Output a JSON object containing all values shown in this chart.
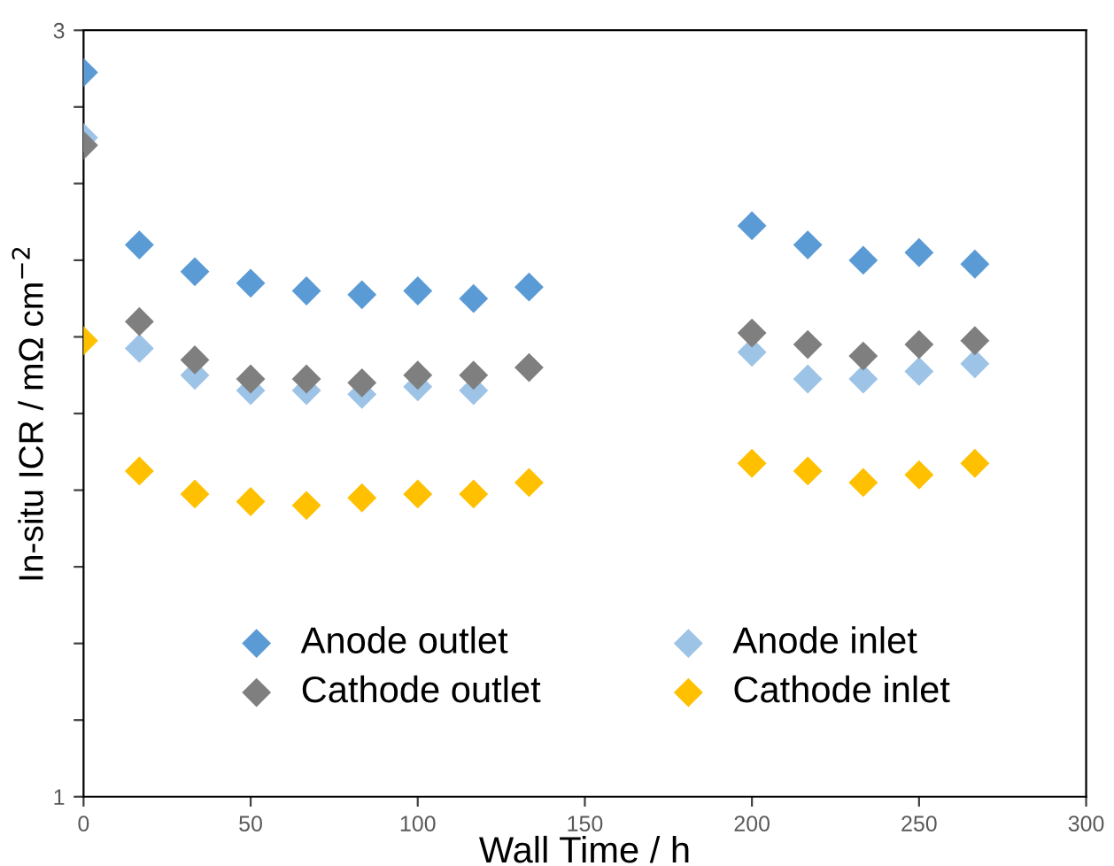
{
  "chart_data": {
    "type": "scatter",
    "xlabel": "Wall Time / h",
    "ylabel": "In-situ ICR / mΩ cm$^{−2}$",
    "x": [
      0,
      16.7,
      33.3,
      50,
      66.7,
      83.3,
      100,
      116.7,
      133.3,
      200,
      216.7,
      233.3,
      250,
      266.7
    ],
    "series": [
      {
        "name": "Anode outlet",
        "color": "#5b9bd5",
        "values": [
          2.89,
          2.44,
          2.37,
          2.34,
          2.32,
          2.31,
          2.32,
          2.3,
          2.33,
          2.49,
          2.44,
          2.4,
          2.42,
          2.39
        ]
      },
      {
        "name": "Anode inlet",
        "color": "#9dc3e6",
        "values": [
          2.72,
          2.17,
          2.1,
          2.06,
          2.06,
          2.05,
          2.07,
          2.06,
          null,
          2.16,
          2.09,
          2.09,
          2.11,
          2.13
        ]
      },
      {
        "name": "Cathode outlet",
        "color": "#7f7f7f",
        "values": [
          2.7,
          2.24,
          2.14,
          2.09,
          2.09,
          2.08,
          2.1,
          2.1,
          2.12,
          2.21,
          2.18,
          2.15,
          2.18,
          2.19
        ]
      },
      {
        "name": "Cathode inlet",
        "color": "#ffc000",
        "values": [
          2.19,
          1.85,
          1.79,
          1.77,
          1.76,
          1.78,
          1.79,
          1.79,
          1.82,
          1.87,
          1.85,
          1.82,
          1.84,
          1.87
        ]
      }
    ],
    "xlim": [
      0,
      300
    ],
    "xticks": [
      0,
      50,
      100,
      150,
      200,
      250,
      300
    ],
    "ylim": [
      1,
      3
    ],
    "yticks": [
      1,
      {
        "value": 1.2,
        "label": null
      },
      {
        "value": 1.4,
        "label": null
      },
      {
        "value": 1.6,
        "label": null
      },
      {
        "value": 1.8,
        "label": null
      },
      {
        "value": 2.0,
        "label": null
      },
      {
        "value": 2.2,
        "label": null
      },
      {
        "value": 2.4,
        "label": null
      },
      {
        "value": 2.6,
        "label": null
      },
      {
        "value": 2.8,
        "label": null
      },
      3
    ],
    "marker": "diamond",
    "grid": false,
    "legend": "bottom"
  }
}
